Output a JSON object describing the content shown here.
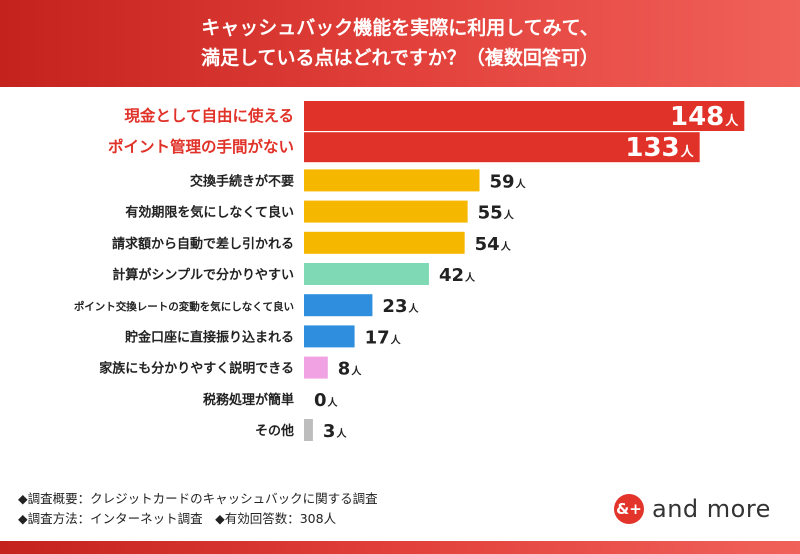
{
  "header": {
    "title_line1": "キャッシュバック機能を実際に利用してみて、",
    "title_line2": "満足している点はどれですか？（複数回答可）"
  },
  "chart_data": {
    "type": "bar",
    "orientation": "horizontal",
    "unit": "人",
    "categories": [
      "現金として自由に使える",
      "ポイント管理の手間がない",
      "交換手続きが不要",
      "有効期限を気にしなくて良い",
      "請求額から自動で差し引かれる",
      "計算がシンプルで分かりやすい",
      "ポイント交換レートの変動を気にしなくて良い",
      "貯金口座に直接振り込まれる",
      "家族にも分かりやすく説明できる",
      "税務処理が簡単",
      "その他"
    ],
    "values": [
      148,
      133,
      59,
      55,
      54,
      42,
      23,
      17,
      8,
      0,
      3
    ],
    "colors": [
      "#e03228",
      "#e03228",
      "#f5b700",
      "#f5b700",
      "#f5b700",
      "#7fd9b4",
      "#2f8fde",
      "#2f8fde",
      "#f0a2e2",
      "#bdbdbd",
      "#bdbdbd"
    ],
    "label_colors": [
      "#e03228",
      "#e03228",
      "#222222",
      "#222222",
      "#222222",
      "#222222",
      "#222222",
      "#222222",
      "#222222",
      "#222222",
      "#222222"
    ],
    "highlight_inside": [
      true,
      true,
      false,
      false,
      false,
      false,
      false,
      false,
      false,
      false,
      false
    ],
    "xlim": [
      0,
      160
    ]
  },
  "footer": {
    "note1": "◆調査概要：クレジットカードのキャッシュバックに関する調査",
    "note2": "◆調査方法：インターネット調査　◆有効回答数：308人"
  },
  "logo": {
    "badge": "&+",
    "text": "and more"
  }
}
